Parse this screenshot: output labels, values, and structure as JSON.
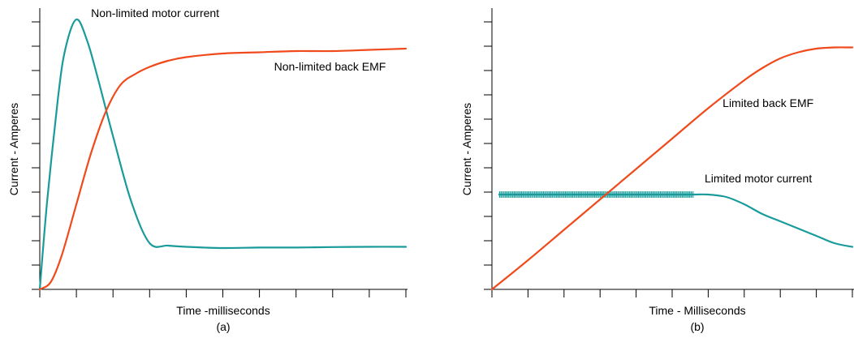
{
  "chart_data": [
    {
      "type": "line",
      "title": "",
      "xlabel": "Time -milliseconds",
      "ylabel": "Current - Amperes",
      "caption": "(a)",
      "x_range": [
        0,
        10
      ],
      "y_range": [
        0,
        11
      ],
      "x_tick_count": 11,
      "y_tick_count": 12,
      "tick_labels": "none",
      "grid": false,
      "series": [
        {
          "name": "Non-limited motor current",
          "color": "#1a9b9b",
          "x": [
            0,
            0.2,
            0.5,
            0.7,
            1.0,
            1.3,
            1.6,
            2.0,
            2.5,
            3.0,
            3.5,
            4.0,
            5.0,
            6.0,
            7.0,
            8.0,
            9.0,
            10.0
          ],
          "y": [
            0,
            3.6,
            7.9,
            9.9,
            11.1,
            10.2,
            8.6,
            6.3,
            3.6,
            1.9,
            1.8,
            1.75,
            1.7,
            1.72,
            1.72,
            1.74,
            1.75,
            1.75
          ]
        },
        {
          "name": "Non-limited back EMF",
          "color": "#f04a1c",
          "x": [
            0,
            0.3,
            0.6,
            1.0,
            1.4,
            1.8,
            2.2,
            2.6,
            3.0,
            3.5,
            4.0,
            5.0,
            6.0,
            7.0,
            8.0,
            9.0,
            10.0
          ],
          "y": [
            0,
            0.3,
            1.4,
            3.5,
            5.6,
            7.3,
            8.4,
            8.85,
            9.15,
            9.4,
            9.55,
            9.7,
            9.75,
            9.8,
            9.8,
            9.85,
            9.9
          ]
        }
      ],
      "annotations": [
        {
          "text": "Non-limited motor current",
          "target": "Non-limited motor current",
          "x": 1.4,
          "y": 11.2
        },
        {
          "text": "Non-limited back EMF",
          "target": "Non-limited back EMF",
          "x": 6.4,
          "y": 9.0
        }
      ]
    },
    {
      "type": "line",
      "title": "",
      "xlabel": "Time - Milliseconds",
      "ylabel": "Current - Amperes",
      "caption": "(b)",
      "x_range": [
        0,
        10
      ],
      "y_range": [
        0,
        11
      ],
      "x_tick_count": 11,
      "y_tick_count": 12,
      "tick_labels": "none",
      "grid": false,
      "series": [
        {
          "name": "Limited motor current",
          "color": "#1a9b9b",
          "x": [
            0.2,
            0.8,
            1.5,
            2.2,
            3.0,
            3.8,
            4.5,
            5.2,
            5.6,
            6.0,
            6.5,
            7.0,
            7.5,
            8.0,
            8.5,
            9.0,
            9.5,
            10.0
          ],
          "y": [
            3.9,
            3.9,
            3.9,
            3.9,
            3.9,
            3.9,
            3.9,
            3.9,
            3.9,
            3.9,
            3.8,
            3.5,
            3.1,
            2.8,
            2.5,
            2.2,
            1.9,
            1.75
          ],
          "thick_segment_x": [
            0.2,
            5.6
          ]
        },
        {
          "name": "Limited back EMF",
          "color": "#f04a1c",
          "x": [
            0,
            1.0,
            2.0,
            3.0,
            4.0,
            5.0,
            6.0,
            7.0,
            7.5,
            8.0,
            8.5,
            9.0,
            9.5,
            10.0
          ],
          "y": [
            0,
            1.2,
            2.45,
            3.7,
            4.95,
            6.2,
            7.45,
            8.6,
            9.1,
            9.5,
            9.75,
            9.9,
            9.95,
            9.95
          ]
        }
      ],
      "annotations": [
        {
          "text": "Limited back EMF",
          "target": "Limited back EMF",
          "x": 6.4,
          "y": 7.5
        },
        {
          "text": "Limited motor current",
          "target": "Limited motor current",
          "x": 5.9,
          "y": 4.4
        }
      ]
    }
  ]
}
